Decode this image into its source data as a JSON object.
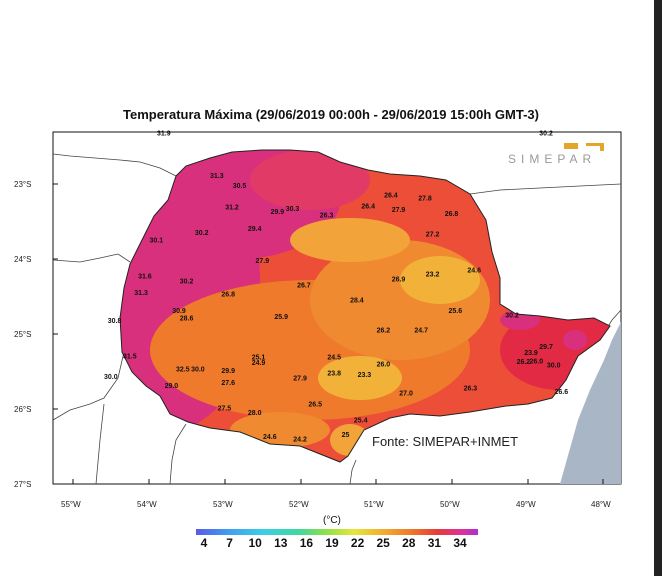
{
  "title": "Temperatura Máxima (29/06/2019 00:00h - 29/06/2019 15:00h GMT-3)",
  "source": "Fonte: SIMEPAR+INMET",
  "logo_text": "SIMEPAR",
  "axes": {
    "lat_labels": [
      "23°S",
      "24°S",
      "25°S",
      "26°S",
      "27°S"
    ],
    "lon_labels": [
      "55°W",
      "54°W",
      "53°W",
      "52°W",
      "51°W",
      "50°W",
      "49°W",
      "48°W"
    ]
  },
  "legend": {
    "unit": "(°C)",
    "ticks": [
      "4",
      "7",
      "10",
      "13",
      "16",
      "19",
      "22",
      "25",
      "28",
      "31",
      "34"
    ]
  },
  "stations": [
    {
      "value": "31.9",
      "lon": -53.8,
      "lat": -22.35
    },
    {
      "value": "31.3",
      "lon": -53.1,
      "lat": -22.92
    },
    {
      "value": "30.5",
      "lon": -52.8,
      "lat": -23.05
    },
    {
      "value": "31.2",
      "lon": -52.9,
      "lat": -23.34
    },
    {
      "value": "29.9",
      "lon": -52.3,
      "lat": -23.4
    },
    {
      "value": "30.3",
      "lon": -52.1,
      "lat": -23.36
    },
    {
      "value": "26.4",
      "lon": -50.8,
      "lat": -23.18
    },
    {
      "value": "27.8",
      "lon": -50.35,
      "lat": -23.22
    },
    {
      "value": "26.4",
      "lon": -51.1,
      "lat": -23.33
    },
    {
      "value": "27.9",
      "lon": -50.7,
      "lat": -23.37
    },
    {
      "value": "26.3",
      "lon": -51.65,
      "lat": -23.45
    },
    {
      "value": "26.8",
      "lon": -50.0,
      "lat": -23.43
    },
    {
      "value": "29.4",
      "lon": -52.6,
      "lat": -23.63
    },
    {
      "value": "30.2",
      "lon": -53.3,
      "lat": -23.68
    },
    {
      "value": "27.2",
      "lon": -50.25,
      "lat": -23.7
    },
    {
      "value": "30.1",
      "lon": -53.9,
      "lat": -23.78
    },
    {
      "value": "27.9",
      "lon": -52.5,
      "lat": -24.05
    },
    {
      "value": "23.2",
      "lon": -50.25,
      "lat": -24.23
    },
    {
      "value": "24.6",
      "lon": -49.7,
      "lat": -24.18
    },
    {
      "value": "31.6",
      "lon": -54.05,
      "lat": -24.26
    },
    {
      "value": "30.2",
      "lon": -53.5,
      "lat": -24.33
    },
    {
      "value": "26.9",
      "lon": -50.7,
      "lat": -24.3
    },
    {
      "value": "26.7",
      "lon": -51.95,
      "lat": -24.38
    },
    {
      "value": "31.3",
      "lon": -54.1,
      "lat": -24.48
    },
    {
      "value": "26.8",
      "lon": -52.95,
      "lat": -24.5
    },
    {
      "value": "28.4",
      "lon": -51.25,
      "lat": -24.58
    },
    {
      "value": "30.9",
      "lon": -53.6,
      "lat": -24.72
    },
    {
      "value": "25.6",
      "lon": -49.95,
      "lat": -24.72
    },
    {
      "value": "30.2",
      "lon": -49.2,
      "lat": -24.78
    },
    {
      "value": "30.8",
      "lon": -54.45,
      "lat": -24.85
    },
    {
      "value": "28.6",
      "lon": -53.5,
      "lat": -24.82
    },
    {
      "value": "25.9",
      "lon": -52.25,
      "lat": -24.8
    },
    {
      "value": "26.2",
      "lon": -50.9,
      "lat": -24.98
    },
    {
      "value": "24.7",
      "lon": -50.4,
      "lat": -24.98
    },
    {
      "value": "29.7",
      "lon": -48.75,
      "lat": -25.2
    },
    {
      "value": "31.5",
      "lon": -54.25,
      "lat": -25.33
    },
    {
      "value": "25.1",
      "lon": -52.55,
      "lat": -25.34
    },
    {
      "value": "24.5",
      "lon": -51.55,
      "lat": -25.34
    },
    {
      "value": "23.9",
      "lon": -48.95,
      "lat": -25.28
    },
    {
      "value": "24.9",
      "lon": -52.55,
      "lat": -25.41
    },
    {
      "value": "26.0",
      "lon": -50.9,
      "lat": -25.43
    },
    {
      "value": "26.2",
      "lon": -49.05,
      "lat": -25.4
    },
    {
      "value": "26.0",
      "lon": -48.88,
      "lat": -25.39
    },
    {
      "value": "30.0",
      "lon": -48.65,
      "lat": -25.45
    },
    {
      "value": "32.5",
      "lon": -53.55,
      "lat": -25.5
    },
    {
      "value": "30.0",
      "lon": -53.35,
      "lat": -25.5
    },
    {
      "value": "29.9",
      "lon": -52.95,
      "lat": -25.52
    },
    {
      "value": "23.8",
      "lon": -51.55,
      "lat": -25.55
    },
    {
      "value": "23.3",
      "lon": -51.15,
      "lat": -25.57
    },
    {
      "value": "30.0",
      "lon": -54.5,
      "lat": -25.6
    },
    {
      "value": "27.9",
      "lon": -52.0,
      "lat": -25.62
    },
    {
      "value": "27.6",
      "lon": -52.95,
      "lat": -25.68
    },
    {
      "value": "29.0",
      "lon": -53.7,
      "lat": -25.72
    },
    {
      "value": "26.3",
      "lon": -49.75,
      "lat": -25.75
    },
    {
      "value": "27.0",
      "lon": -50.6,
      "lat": -25.82
    },
    {
      "value": "26.6",
      "lon": -48.55,
      "lat": -25.8
    },
    {
      "value": "26.5",
      "lon": -51.8,
      "lat": -25.97
    },
    {
      "value": "27.5",
      "lon": -53.0,
      "lat": -26.02
    },
    {
      "value": "28.0",
      "lon": -52.6,
      "lat": -26.08
    },
    {
      "value": "25.4",
      "lon": -51.2,
      "lat": -26.18
    },
    {
      "value": "24.6",
      "lon": -52.4,
      "lat": -26.4
    },
    {
      "value": "24.2",
      "lon": -52.0,
      "lat": -26.43
    },
    {
      "value": "25",
      "lon": -51.4,
      "lat": -26.37
    },
    {
      "value": "30.2",
      "lon": -48.75,
      "lat": -22.35
    }
  ],
  "colors": {
    "hot": "#d8307a",
    "warm": "#e8443c",
    "mild": "#f07a2c",
    "cool": "#f2a43a",
    "ocean": "#a7b5c6",
    "land_outside": "#ffffff"
  }
}
